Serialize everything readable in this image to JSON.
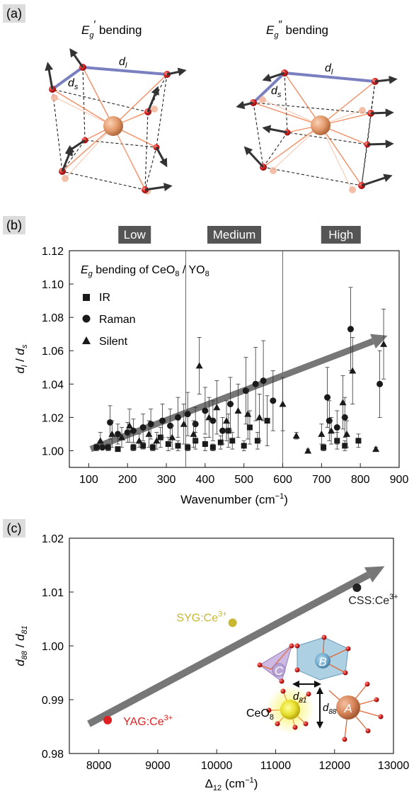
{
  "colors": {
    "axis": "#222222",
    "marker": "#1a1a1a",
    "trend_arrow": "#777777",
    "band_box": "#555555",
    "band_text": "#ffffff",
    "panel_tag_bg": "#dcdcdc",
    "o_atom": "#d42020",
    "o_ghost": "#f2b49a",
    "center_atom": "#e39a6b",
    "bond": "#f07a4a",
    "dl_line": "#7a7fc0",
    "yag": "#e02020",
    "syg": "#c8b830",
    "css": "#222222",
    "polyhedron_c": "#a98cc8",
    "polyhedron_b": "#87b5cc",
    "ce_atom": "#e8e030",
    "a_atom": "#d8855a"
  },
  "panel_a": {
    "tag": "(a)",
    "left_title_symbol": "E",
    "left_title_sub": "g",
    "left_title_prime": "′",
    "left_title_word": " bending",
    "right_title_symbol": "E",
    "right_title_sub": "g",
    "right_title_prime": "″",
    "right_title_word": " bending",
    "dl_main": "d",
    "dl_sub": "l",
    "ds_main": "d",
    "ds_sub": "s"
  },
  "panel_b": {
    "tag": "(b)",
    "bands": [
      "Low",
      "Medium",
      "High"
    ],
    "legend_title_main": "E",
    "legend_title_sub": "g",
    "legend_title_rest": " bending of CeO",
    "legend_title_sub2": "8",
    "legend_title_rest2": " / YO",
    "legend_title_sub3": "8",
    "legend_ir": "IR",
    "legend_raman": "Raman",
    "legend_silent": "Silent",
    "ylabel_main": "d",
    "ylabel_sub": "l",
    "ylabel_slash": " / ",
    "ylabel_main2": "d",
    "ylabel_sub2": "s",
    "xlabel_main": "Wavenumber (cm",
    "xlabel_sup": "−1",
    "xlabel_end": ")"
  },
  "panel_c": {
    "tag": "(c)",
    "ylabel_main": "d",
    "ylabel_sub": "88",
    "ylabel_slash": " / ",
    "ylabel_main2": "d",
    "ylabel_sub2": "81",
    "xlabel_main": "Δ",
    "xlabel_sub": "12",
    "xlabel_rest": " (cm",
    "xlabel_sup": "−1",
    "xlabel_end": ")",
    "inset_c": "C",
    "inset_b": "B",
    "inset_a": "A",
    "inset_ce_main": "CeO",
    "inset_ce_sub": "8",
    "inset_d81_main": "d",
    "inset_d81_sub": "81",
    "inset_d88_main": "d",
    "inset_d88_sub": "88"
  },
  "chart_data": [
    {
      "type": "scatter",
      "panel": "b",
      "xlabel": "Wavenumber (cm−1)",
      "ylabel": "dl / ds",
      "xlim": [
        50,
        900
      ],
      "ylim": [
        0.99,
        1.12
      ],
      "xticks": [
        100,
        200,
        300,
        400,
        500,
        600,
        700,
        800,
        900
      ],
      "yticks": [
        1.0,
        1.02,
        1.04,
        1.06,
        1.08,
        1.1,
        1.12
      ],
      "band_dividers": [
        350,
        600
      ],
      "bands": [
        "Low",
        "Medium",
        "High"
      ],
      "legend_position": "top-left",
      "trend_arrow": {
        "from": [
          105,
          1.001
        ],
        "to": [
          870,
          1.069
        ]
      },
      "series": [
        {
          "name": "IR",
          "marker": "square",
          "points": [
            [
              120,
              1.002,
              0.002
            ],
            [
              150,
              1.002,
              0.002
            ],
            [
              175,
              1.001,
              0.001
            ],
            [
              215,
              1.002,
              0.002
            ],
            [
              240,
              1.003,
              0.002
            ],
            [
              265,
              1.002,
              0.002
            ],
            [
              285,
              1.008,
              0.006
            ],
            [
              305,
              1.004,
              0.004
            ],
            [
              330,
              1.003,
              0.003
            ],
            [
              355,
              1.002,
              0.002
            ],
            [
              375,
              1.006,
              0.005
            ],
            [
              400,
              1.004,
              0.004
            ],
            [
              420,
              1.002,
              0.002
            ],
            [
              440,
              1.005,
              0.004
            ],
            [
              460,
              1.012,
              0.01
            ],
            [
              470,
              1.006,
              0.005
            ],
            [
              500,
              1.003,
              0.003
            ],
            [
              515,
              1.014,
              0.01
            ],
            [
              535,
              1.006,
              0.005
            ],
            [
              560,
              1.018,
              0.015
            ],
            [
              705,
              1.002,
              0.002
            ],
            [
              740,
              1.006,
              0.005
            ],
            [
              760,
              1.003,
              0.003
            ],
            [
              795,
              1.006,
              0.004
            ]
          ]
        },
        {
          "name": "Raman",
          "marker": "circle",
          "points": [
            [
              135,
              1.002,
              0.001
            ],
            [
              155,
              1.017,
              0.01
            ],
            [
              175,
              1.01,
              0.006
            ],
            [
              200,
              1.011,
              0.006
            ],
            [
              215,
              1.012,
              0.007
            ],
            [
              240,
              1.014,
              0.008
            ],
            [
              260,
              1.016,
              0.009
            ],
            [
              290,
              1.018,
              0.01
            ],
            [
              310,
              1.015,
              0.01
            ],
            [
              330,
              1.02,
              0.012
            ],
            [
              355,
              1.022,
              0.013
            ],
            [
              375,
              1.016,
              0.01
            ],
            [
              400,
              1.024,
              0.014
            ],
            [
              420,
              1.018,
              0.012
            ],
            [
              445,
              1.012,
              0.008
            ],
            [
              465,
              1.028,
              0.016
            ],
            [
              505,
              1.036,
              0.02
            ],
            [
              530,
              1.04,
              0.022
            ],
            [
              550,
              1.042,
              0.024
            ],
            [
              575,
              1.03,
              0.018
            ],
            [
              715,
              1.032,
              0.018
            ],
            [
              720,
              1.018,
              0.012
            ],
            [
              740,
              1.014,
              0.01
            ],
            [
              760,
              1.02,
              0.012
            ],
            [
              775,
              1.073,
              0.025
            ],
            [
              850,
              1.04,
              0.02
            ]
          ]
        },
        {
          "name": "Silent",
          "marker": "triangle",
          "points": [
            [
              130,
              1.006,
              0.005
            ],
            [
              160,
              1.01,
              0.008
            ],
            [
              185,
              1.008,
              0.006
            ],
            [
              205,
              1.015,
              0.01
            ],
            [
              230,
              1.006,
              0.004
            ],
            [
              255,
              1.01,
              0.008
            ],
            [
              275,
              1.006,
              0.005
            ],
            [
              315,
              1.008,
              0.007
            ],
            [
              345,
              1.016,
              0.012
            ],
            [
              370,
              1.01,
              0.008
            ],
            [
              385,
              1.051,
              0.017
            ],
            [
              410,
              1.02,
              0.012
            ],
            [
              430,
              1.026,
              0.016
            ],
            [
              455,
              1.018,
              0.012
            ],
            [
              485,
              1.024,
              0.016
            ],
            [
              510,
              1.022,
              0.015
            ],
            [
              540,
              1.02,
              0.014
            ],
            [
              600,
              1.028,
              0.016
            ],
            [
              635,
              1.009,
              0.002
            ],
            [
              665,
              1.0,
              0.001
            ],
            [
              700,
              1.01,
              0.006
            ],
            [
              725,
              1.012,
              0.008
            ],
            [
              755,
              1.029,
              0.016
            ],
            [
              765,
              1.01,
              0.008
            ],
            [
              780,
              1.048,
              0.02
            ],
            [
              840,
              1.001,
              0.001
            ],
            [
              860,
              1.064,
              0.021
            ]
          ]
        }
      ]
    },
    {
      "type": "scatter",
      "panel": "c",
      "xlabel": "Δ12 (cm−1)",
      "ylabel": "d88 / d81",
      "xlim": [
        7500,
        13000
      ],
      "ylim": [
        0.98,
        1.02
      ],
      "xticks": [
        8000,
        9000,
        10000,
        11000,
        12000,
        13000
      ],
      "yticks": [
        0.98,
        0.99,
        1.0,
        1.01,
        1.02
      ],
      "trend_arrow": {
        "from": [
          7830,
          0.9855
        ],
        "to": [
          12850,
          1.0148
        ]
      },
      "points": [
        {
          "label": "YAG:Ce",
          "sup": "3+",
          "x": 8150,
          "y": 0.9862,
          "color": "#e02020"
        },
        {
          "label": "SYG:Ce",
          "sup": "3+",
          "x": 10270,
          "y": 1.0043,
          "color": "#c8b830"
        },
        {
          "label": "CSS:Ce",
          "sup": "3+",
          "x": 12380,
          "y": 1.0108,
          "color": "#222222"
        }
      ]
    }
  ]
}
